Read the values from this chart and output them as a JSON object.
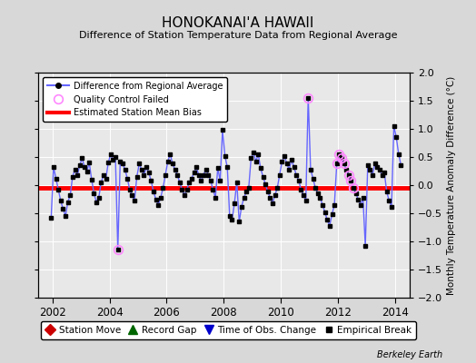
{
  "title": "HONOKANAI'A HAWAII",
  "subtitle": "Difference of Station Temperature Data from Regional Average",
  "ylabel": "Monthly Temperature Anomaly Difference (°C)",
  "ylim": [
    -2,
    2
  ],
  "xlim": [
    2001.5,
    2014.5
  ],
  "xticks": [
    2002,
    2004,
    2006,
    2008,
    2010,
    2012,
    2014
  ],
  "yticks": [
    -2,
    -1.5,
    -1,
    -0.5,
    0,
    0.5,
    1,
    1.5,
    2
  ],
  "mean_bias": -0.05,
  "fig_bg_color": "#d8d8d8",
  "plot_bg_color": "#e8e8e8",
  "line_color": "#6666ff",
  "marker_color": "#000000",
  "bias_color": "#ff0000",
  "qc_color": "#ff88ff",
  "times": [
    2001.958,
    2002.042,
    2002.125,
    2002.208,
    2002.292,
    2002.375,
    2002.458,
    2002.542,
    2002.625,
    2002.708,
    2002.792,
    2002.875,
    2002.958,
    2003.042,
    2003.125,
    2003.208,
    2003.292,
    2003.375,
    2003.458,
    2003.542,
    2003.625,
    2003.708,
    2003.792,
    2003.875,
    2003.958,
    2004.042,
    2004.125,
    2004.208,
    2004.292,
    2004.375,
    2004.458,
    2004.542,
    2004.625,
    2004.708,
    2004.792,
    2004.875,
    2004.958,
    2005.042,
    2005.125,
    2005.208,
    2005.292,
    2005.375,
    2005.458,
    2005.542,
    2005.625,
    2005.708,
    2005.792,
    2005.875,
    2005.958,
    2006.042,
    2006.125,
    2006.208,
    2006.292,
    2006.375,
    2006.458,
    2006.542,
    2006.625,
    2006.708,
    2006.792,
    2006.875,
    2006.958,
    2007.042,
    2007.125,
    2007.208,
    2007.292,
    2007.375,
    2007.458,
    2007.542,
    2007.625,
    2007.708,
    2007.792,
    2007.875,
    2007.958,
    2008.042,
    2008.125,
    2008.208,
    2008.292,
    2008.375,
    2008.458,
    2008.542,
    2008.625,
    2008.708,
    2008.792,
    2008.875,
    2008.958,
    2009.042,
    2009.125,
    2009.208,
    2009.292,
    2009.375,
    2009.458,
    2009.542,
    2009.625,
    2009.708,
    2009.792,
    2009.875,
    2009.958,
    2010.042,
    2010.125,
    2010.208,
    2010.292,
    2010.375,
    2010.458,
    2010.542,
    2010.625,
    2010.708,
    2010.792,
    2010.875,
    2010.958,
    2011.042,
    2011.125,
    2011.208,
    2011.292,
    2011.375,
    2011.458,
    2011.542,
    2011.625,
    2011.708,
    2011.792,
    2011.875,
    2011.958,
    2012.042,
    2012.125,
    2012.208,
    2012.292,
    2012.375,
    2012.458,
    2012.542,
    2012.625,
    2012.708,
    2012.792,
    2012.875,
    2012.958,
    2013.042,
    2013.125,
    2013.208,
    2013.292,
    2013.375,
    2013.458,
    2013.542,
    2013.625,
    2013.708,
    2013.792,
    2013.875,
    2013.958,
    2014.042,
    2014.125,
    2014.208
  ],
  "values": [
    -0.58,
    0.32,
    0.12,
    -0.08,
    -0.28,
    -0.42,
    -0.55,
    -0.3,
    -0.18,
    0.15,
    0.28,
    0.18,
    0.35,
    0.48,
    0.32,
    0.25,
    0.4,
    0.1,
    -0.15,
    -0.3,
    -0.22,
    0.05,
    0.18,
    0.12,
    0.4,
    0.55,
    0.45,
    0.5,
    -1.15,
    0.42,
    0.38,
    0.28,
    0.12,
    -0.08,
    -0.18,
    -0.28,
    0.15,
    0.38,
    0.28,
    0.18,
    0.32,
    0.22,
    0.08,
    -0.12,
    -0.25,
    -0.35,
    -0.22,
    -0.05,
    0.18,
    0.42,
    0.55,
    0.38,
    0.28,
    0.18,
    0.05,
    -0.08,
    -0.18,
    -0.08,
    0.05,
    0.12,
    0.22,
    0.32,
    0.18,
    0.08,
    0.18,
    0.28,
    0.18,
    0.08,
    -0.08,
    -0.22,
    0.3,
    0.08,
    0.98,
    0.52,
    0.32,
    -0.55,
    -0.62,
    -0.32,
    0.05,
    -0.65,
    -0.38,
    -0.22,
    -0.12,
    -0.05,
    0.48,
    0.58,
    0.42,
    0.55,
    0.3,
    0.15,
    0.02,
    -0.12,
    -0.22,
    -0.32,
    -0.18,
    -0.05,
    0.18,
    0.42,
    0.52,
    0.38,
    0.28,
    0.45,
    0.32,
    0.18,
    0.08,
    -0.08,
    -0.18,
    -0.28,
    1.55,
    0.28,
    0.12,
    -0.05,
    -0.15,
    -0.22,
    -0.35,
    -0.48,
    -0.62,
    -0.72,
    -0.52,
    -0.35,
    0.38,
    0.55,
    0.48,
    0.38,
    0.28,
    0.18,
    0.08,
    -0.05,
    -0.15,
    -0.25,
    -0.35,
    -0.22,
    -1.08,
    0.35,
    0.28,
    0.18,
    0.38,
    0.32,
    0.28,
    0.18,
    0.22,
    -0.12,
    -0.28,
    -0.38,
    1.05,
    0.85,
    0.55,
    0.35
  ],
  "qc_failed_indices": [
    28,
    108,
    120,
    121,
    122,
    123,
    125,
    126,
    127
  ],
  "legend2_entries": [
    {
      "label": "Station Move",
      "color": "#cc0000",
      "marker": "D",
      "ms": 6
    },
    {
      "label": "Record Gap",
      "color": "#006600",
      "marker": "^",
      "ms": 7
    },
    {
      "label": "Time of Obs. Change",
      "color": "#0000cc",
      "marker": "v",
      "ms": 7
    },
    {
      "label": "Empirical Break",
      "color": "#000000",
      "marker": "s",
      "ms": 5
    }
  ]
}
